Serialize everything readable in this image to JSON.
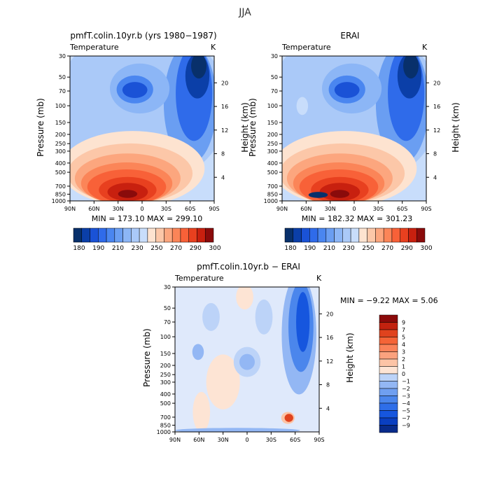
{
  "figure_title": "JJA",
  "colors_pos": [
    "#08306b",
    "#0b3fa8",
    "#1a52d6",
    "#2f6bea",
    "#4a86f0",
    "#6a9ef2",
    "#8cb6f6",
    "#aac9f8",
    "#c8ddfb",
    "#fde3d0",
    "#fcc7a8",
    "#fca67e",
    "#fb8558",
    "#f86138",
    "#e8401f",
    "#c8200f",
    "#8a0b0b"
  ],
  "colors_diff": [
    "#082b8a",
    "#0a3fc0",
    "#1656de",
    "#2e6ee8",
    "#4b86ec",
    "#6f9ff0",
    "#93b7f4",
    "#bcd3f8",
    "#dfe9fb",
    "#fde4d4",
    "#fcc4a6",
    "#fba27e",
    "#fa8259",
    "#f46437",
    "#e0431e",
    "#c2220f",
    "#8b0a0a"
  ],
  "chart_data": [
    {
      "type": "heatmap",
      "title": "pmfT.colin.10yr.b (yrs 1980−1987)",
      "subtitle": "Temperature",
      "units": "K",
      "xlabel": "",
      "ylabel": "Pressure (mb)",
      "ylabel_right": "Height (km)",
      "x_ticks": [
        "90N",
        "60N",
        "30N",
        "0",
        "30S",
        "60S",
        "90S"
      ],
      "y_ticks": [
        30,
        50,
        70,
        100,
        150,
        200,
        250,
        300,
        400,
        500,
        700,
        850,
        1000
      ],
      "y_right_ticks": [
        4,
        8,
        12,
        16,
        20
      ],
      "min_max_text": "MIN = 173.10   MAX = 299.10",
      "min": 173.1,
      "max": 299.1,
      "colorbar": {
        "orientation": "horizontal",
        "labels": [
          "180",
          "190",
          "210",
          "230",
          "250",
          "270",
          "290",
          "300"
        ]
      }
    },
    {
      "type": "heatmap",
      "title": "ERAI",
      "subtitle": "Temperature",
      "units": "K",
      "xlabel": "",
      "ylabel": "Pressure (mb)",
      "ylabel_right": "Height (km)",
      "x_ticks": [
        "90N",
        "60N",
        "30N",
        "0",
        "30S",
        "60S",
        "90S"
      ],
      "y_ticks": [
        30,
        50,
        70,
        100,
        150,
        200,
        250,
        300,
        400,
        500,
        700,
        850,
        1000
      ],
      "y_right_ticks": [
        4,
        8,
        12,
        16,
        20
      ],
      "min_max_text": "MIN = 182.32   MAX = 301.23",
      "min": 182.32,
      "max": 301.23,
      "colorbar": {
        "orientation": "horizontal",
        "labels": [
          "180",
          "190",
          "210",
          "230",
          "250",
          "270",
          "290",
          "300"
        ]
      }
    },
    {
      "type": "heatmap",
      "title": "pmfT.colin.10yr.b − ERAI",
      "subtitle": "Temperature",
      "units": "K",
      "xlabel": "",
      "ylabel": "Pressure (mb)",
      "ylabel_right": "Height (km)",
      "x_ticks": [
        "90N",
        "60N",
        "30N",
        "0",
        "30S",
        "60S",
        "90S"
      ],
      "y_ticks": [
        30,
        50,
        70,
        100,
        150,
        200,
        250,
        300,
        400,
        500,
        700,
        850,
        1000
      ],
      "y_right_ticks": [
        4,
        8,
        12,
        16,
        20
      ],
      "min_max_text": "MIN =   −9.22   MAX =    5.06",
      "min": -9.22,
      "max": 5.06,
      "colorbar": {
        "orientation": "vertical",
        "labels": [
          "9",
          "7",
          "5",
          "4",
          "3",
          "2",
          "1",
          "0",
          "−1",
          "−2",
          "−3",
          "−4",
          "−5",
          "−7",
          "−9"
        ]
      }
    }
  ]
}
